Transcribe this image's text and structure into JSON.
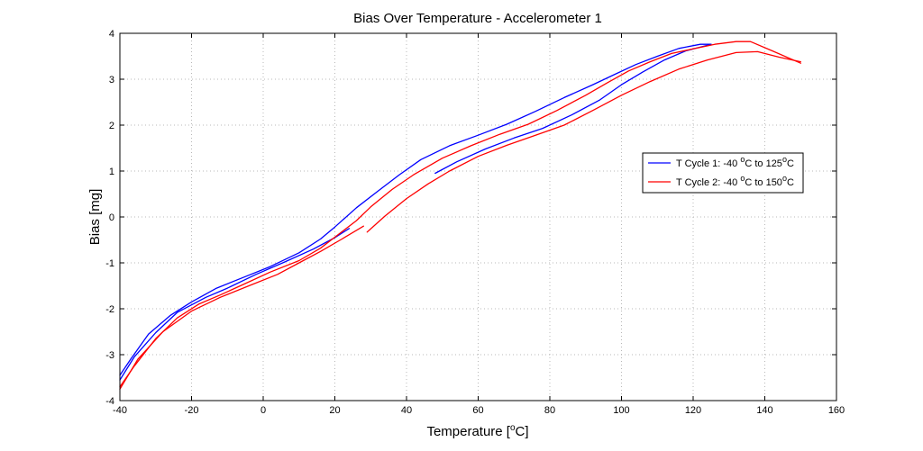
{
  "chart_data": {
    "type": "line",
    "title": "Bias Over Temperature - Accelerometer 1",
    "xlabel": {
      "prefix": "Temperature [",
      "sup": "o",
      "suffix": "C]"
    },
    "ylabel": "Bias [mg]",
    "xlim": [
      -40,
      160
    ],
    "ylim": [
      -4,
      4
    ],
    "xticks": [
      -40,
      -20,
      0,
      20,
      40,
      60,
      80,
      100,
      120,
      140,
      160
    ],
    "yticks": [
      -4,
      -3,
      -2,
      -1,
      0,
      1,
      2,
      3,
      4
    ],
    "grid": true,
    "legend_position": "center-right",
    "series": [
      {
        "name": "T Cycle 1: -40 oC to 125oC",
        "legend": {
          "part1": "T Cycle 1: -40 ",
          "sup1": "o",
          "part2": "C to 125",
          "sup2": "o",
          "part3": "C"
        },
        "color": "#0000ff",
        "segments": [
          [
            [
              -40,
              -3.45
            ],
            [
              -37,
              -3.1
            ],
            [
              -32,
              -2.55
            ],
            [
              -26,
              -2.15
            ],
            [
              -20,
              -1.85
            ],
            [
              -13,
              -1.55
            ],
            [
              -5,
              -1.3
            ],
            [
              2,
              -1.08
            ],
            [
              10,
              -0.78
            ],
            [
              16,
              -0.48
            ],
            [
              20,
              -0.22
            ],
            [
              26,
              0.2
            ],
            [
              32,
              0.56
            ],
            [
              38,
              0.92
            ],
            [
              44,
              1.25
            ],
            [
              52,
              1.55
            ],
            [
              60,
              1.78
            ],
            [
              68,
              2.02
            ],
            [
              76,
              2.3
            ],
            [
              84,
              2.6
            ],
            [
              92,
              2.88
            ],
            [
              98,
              3.1
            ],
            [
              104,
              3.32
            ],
            [
              110,
              3.5
            ],
            [
              116,
              3.67
            ],
            [
              122,
              3.76
            ],
            [
              125,
              3.76
            ]
          ],
          [
            [
              -40,
              -3.55
            ],
            [
              -36,
              -3.05
            ],
            [
              -30,
              -2.52
            ],
            [
              -24,
              -2.08
            ],
            [
              -16,
              -1.75
            ],
            [
              -10,
              -1.55
            ],
            [
              -2,
              -1.25
            ],
            [
              6,
              -0.98
            ],
            [
              14,
              -0.7
            ],
            [
              20,
              -0.45
            ],
            [
              24,
              -0.25
            ]
          ],
          [
            [
              48,
              0.95
            ],
            [
              54,
              1.2
            ],
            [
              62,
              1.48
            ],
            [
              70,
              1.72
            ],
            [
              78,
              1.93
            ],
            [
              86,
              2.22
            ],
            [
              94,
              2.55
            ],
            [
              100,
              2.88
            ],
            [
              106,
              3.16
            ],
            [
              112,
              3.42
            ],
            [
              118,
              3.62
            ],
            [
              125,
              3.76
            ]
          ]
        ]
      },
      {
        "name": "T Cycle 2: -40 oC to 150oC",
        "legend": {
          "part1": "T Cycle 2: -40 ",
          "sup1": "o",
          "part2": "C to 150",
          "sup2": "o",
          "part3": "C"
        },
        "color": "#ff0000",
        "segments": [
          [
            [
              -40,
              -3.7
            ],
            [
              -36,
              -3.25
            ],
            [
              -30,
              -2.65
            ],
            [
              -24,
              -2.2
            ],
            [
              -18,
              -1.9
            ],
            [
              -12,
              -1.7
            ],
            [
              -5,
              -1.45
            ],
            [
              2,
              -1.2
            ],
            [
              10,
              -0.95
            ],
            [
              16,
              -0.68
            ],
            [
              21,
              -0.38
            ],
            [
              26,
              -0.08
            ],
            [
              30,
              0.22
            ],
            [
              36,
              0.6
            ],
            [
              42,
              0.92
            ],
            [
              50,
              1.28
            ],
            [
              58,
              1.55
            ],
            [
              66,
              1.8
            ],
            [
              74,
              2.02
            ],
            [
              82,
              2.32
            ],
            [
              90,
              2.65
            ],
            [
              96,
              2.92
            ],
            [
              102,
              3.18
            ],
            [
              108,
              3.38
            ],
            [
              114,
              3.56
            ],
            [
              120,
              3.66
            ],
            [
              126,
              3.76
            ],
            [
              132,
              3.82
            ],
            [
              136,
              3.82
            ],
            [
              142,
              3.62
            ],
            [
              150,
              3.35
            ]
          ],
          [
            [
              -40,
              -3.75
            ],
            [
              -35,
              -3.1
            ],
            [
              -28,
              -2.5
            ],
            [
              -20,
              -2.05
            ],
            [
              -12,
              -1.75
            ],
            [
              -4,
              -1.5
            ],
            [
              4,
              -1.25
            ],
            [
              10,
              -1.0
            ],
            [
              16,
              -0.75
            ],
            [
              22,
              -0.48
            ],
            [
              28,
              -0.2
            ]
          ],
          [
            [
              29,
              -0.33
            ],
            [
              34,
              0.02
            ],
            [
              40,
              0.4
            ],
            [
              46,
              0.72
            ],
            [
              52,
              1.0
            ],
            [
              60,
              1.32
            ],
            [
              68,
              1.56
            ],
            [
              76,
              1.78
            ],
            [
              84,
              2.0
            ],
            [
              92,
              2.32
            ],
            [
              100,
              2.65
            ],
            [
              108,
              2.95
            ],
            [
              116,
              3.22
            ],
            [
              124,
              3.42
            ],
            [
              132,
              3.58
            ],
            [
              138,
              3.6
            ],
            [
              144,
              3.48
            ],
            [
              150,
              3.38
            ]
          ]
        ]
      }
    ]
  }
}
